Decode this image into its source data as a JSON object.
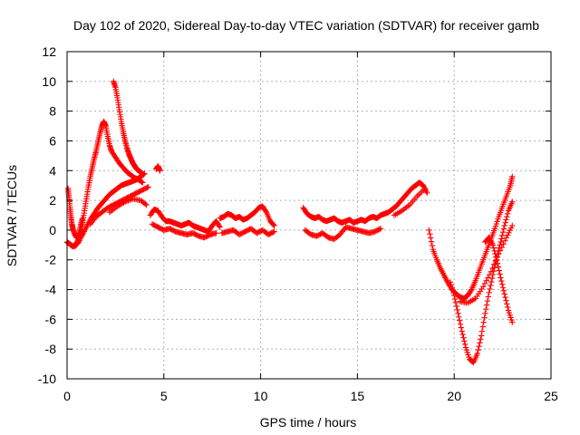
{
  "chart_data": {
    "type": "scatter",
    "title": "Day 102 of 2020, Sidereal Day-to-day VTEC variation (SDTVAR) for receiver gamb",
    "xlabel": "GPS time / hours",
    "ylabel": "SDTVAR / TECUs",
    "xlim": [
      0,
      25
    ],
    "ylim": [
      -10,
      12
    ],
    "xticks": [
      0,
      5,
      10,
      15,
      20,
      25
    ],
    "yticks": [
      -10,
      -8,
      -6,
      -4,
      -2,
      0,
      2,
      4,
      6,
      8,
      10,
      12
    ],
    "grid": true,
    "marker": "plus",
    "color": "#ff0000",
    "series": [
      {
        "x": [
          0.0,
          0.1,
          0.2,
          0.3,
          0.4,
          0.5,
          0.6,
          0.7,
          0.8,
          0.9,
          1.0,
          1.1,
          1.2,
          1.3,
          1.4,
          1.5,
          1.6,
          1.7,
          1.8,
          1.9,
          2.0,
          2.1,
          2.2,
          2.3
        ],
        "y": [
          -0.8,
          -0.9,
          -1.0,
          -1.1,
          -1.0,
          -0.9,
          -0.6,
          -0.2,
          0.5,
          1.3,
          2.1,
          2.9,
          3.6,
          4.2,
          4.8,
          5.3,
          5.9,
          6.5,
          7.0,
          7.3,
          7.0,
          6.3,
          5.7,
          5.3
        ]
      },
      {
        "x": [
          0.05,
          0.1,
          0.15,
          0.2,
          0.25,
          0.3,
          0.4,
          0.5,
          0.6,
          0.7,
          0.8
        ],
        "y": [
          2.8,
          2.2,
          1.5,
          0.9,
          0.4,
          0.1,
          -0.3,
          -0.5,
          -0.3,
          0.3,
          0.8
        ]
      },
      {
        "x": [
          2.4,
          2.5,
          2.6,
          2.7,
          2.8,
          2.9,
          3.0,
          3.1,
          3.2,
          3.3,
          3.4,
          3.5,
          3.6,
          3.7,
          3.8,
          3.9
        ],
        "y": [
          10.0,
          9.6,
          8.9,
          8.1,
          7.3,
          6.6,
          6.0,
          5.5,
          5.1,
          4.8,
          4.5,
          4.3,
          4.1,
          4.0,
          3.9,
          3.8
        ]
      },
      {
        "x": [
          2.3,
          2.5,
          2.7,
          2.9,
          3.1,
          3.3,
          3.5,
          3.7,
          3.9
        ],
        "y": [
          5.3,
          4.9,
          4.5,
          4.2,
          3.9,
          3.7,
          3.5,
          3.4,
          3.2
        ]
      },
      {
        "x": [
          0.4,
          0.6,
          0.8,
          1.0,
          1.2,
          1.4,
          1.6,
          1.8,
          2.0,
          2.2,
          2.4,
          2.6,
          2.8,
          3.0,
          3.2,
          3.4,
          3.6,
          3.8,
          4.0
        ],
        "y": [
          -1.1,
          -0.8,
          -0.3,
          0.2,
          0.7,
          1.1,
          1.5,
          1.8,
          2.1,
          2.4,
          2.6,
          2.8,
          3.0,
          3.1,
          3.2,
          3.3,
          3.4,
          3.6,
          3.8
        ]
      },
      {
        "x": [
          1.2,
          1.5,
          1.8,
          2.1,
          2.4,
          2.7,
          3.0,
          3.3,
          3.6,
          3.9,
          4.2
        ],
        "y": [
          0.4,
          0.9,
          1.2,
          1.5,
          1.7,
          1.9,
          2.1,
          2.3,
          2.5,
          2.7,
          2.9
        ]
      },
      {
        "x": [
          2.2,
          2.6,
          3.0,
          3.4,
          3.8,
          4.1
        ],
        "y": [
          1.2,
          1.6,
          1.9,
          2.1,
          2.0,
          1.7
        ]
      },
      {
        "x": [
          4.6,
          4.7,
          4.8
        ],
        "y": [
          4.1,
          4.3,
          4.0
        ]
      },
      {
        "x": [
          4.3,
          4.5,
          4.7,
          4.9,
          5.1,
          5.3,
          5.5,
          5.7,
          5.9,
          6.1,
          6.3,
          6.5,
          6.7,
          6.9,
          7.1,
          7.3,
          7.5,
          7.7,
          7.9
        ],
        "y": [
          1.0,
          1.4,
          1.3,
          0.9,
          0.6,
          0.6,
          0.5,
          0.4,
          0.3,
          0.4,
          0.5,
          0.3,
          0.2,
          0.1,
          0.0,
          -0.1,
          0.3,
          0.6,
          0.2
        ]
      },
      {
        "x": [
          4.4,
          4.7,
          5.0,
          5.3,
          5.6,
          5.9,
          6.2,
          6.5,
          6.8,
          7.1,
          7.4,
          7.7
        ],
        "y": [
          0.4,
          0.2,
          0.0,
          0.1,
          -0.1,
          -0.2,
          -0.3,
          -0.2,
          -0.4,
          -0.5,
          -0.3,
          -0.2
        ]
      },
      {
        "x": [
          7.9,
          8.1,
          8.3,
          8.5,
          8.7,
          8.9,
          9.1,
          9.3,
          9.5,
          9.7,
          9.9,
          10.1,
          10.3,
          10.5,
          10.7
        ],
        "y": [
          0.8,
          0.9,
          1.1,
          1.0,
          0.8,
          0.9,
          0.7,
          0.8,
          1.0,
          1.2,
          1.5,
          1.6,
          1.2,
          0.6,
          0.3
        ]
      },
      {
        "x": [
          8.0,
          8.3,
          8.6,
          8.9,
          9.2,
          9.5,
          9.8,
          10.1,
          10.4,
          10.7
        ],
        "y": [
          -0.2,
          -0.1,
          0.0,
          -0.3,
          -0.1,
          0.1,
          -0.2,
          0.0,
          -0.3,
          -0.1
        ]
      },
      {
        "x": [
          12.2,
          12.4,
          12.6,
          12.8,
          13.0,
          13.2,
          13.4,
          13.6,
          13.8,
          14.0,
          14.2,
          14.4,
          14.6,
          14.8,
          15.0,
          15.2,
          15.4,
          15.6,
          15.8,
          16.0,
          16.2,
          16.4,
          16.6,
          16.8
        ],
        "y": [
          1.5,
          1.1,
          0.9,
          0.8,
          0.9,
          0.7,
          0.6,
          0.7,
          0.8,
          0.6,
          0.5,
          0.6,
          0.7,
          0.5,
          0.6,
          0.7,
          0.6,
          0.8,
          0.9,
          0.8,
          1.0,
          1.1,
          1.2,
          1.4
        ]
      },
      {
        "x": [
          12.3,
          12.6,
          12.9,
          13.2,
          13.5,
          13.8,
          14.1,
          14.4,
          14.7,
          15.0,
          15.3,
          15.6,
          15.9,
          16.2
        ],
        "y": [
          0.0,
          -0.3,
          -0.4,
          -0.2,
          -0.5,
          -0.6,
          -0.3,
          0.2,
          0.1,
          0.0,
          -0.1,
          -0.2,
          -0.1,
          0.1
        ]
      },
      {
        "x": [
          16.8,
          17.0,
          17.2,
          17.4,
          17.6,
          17.8,
          18.0,
          18.2,
          18.4,
          18.6
        ],
        "y": [
          1.4,
          1.6,
          1.9,
          2.2,
          2.5,
          2.8,
          3.0,
          3.2,
          3.0,
          2.5
        ]
      },
      {
        "x": [
          16.9,
          17.3,
          17.7,
          18.1,
          18.5
        ],
        "y": [
          1.0,
          1.3,
          1.7,
          2.3,
          2.8
        ]
      },
      {
        "x": [
          18.7,
          18.9,
          19.1,
          19.3,
          19.5,
          19.7,
          19.9,
          20.1,
          20.3,
          20.5,
          20.7,
          20.9,
          21.1,
          21.3,
          21.5,
          21.7,
          21.9,
          22.1,
          22.3,
          22.5,
          22.7,
          22.9,
          23.0
        ],
        "y": [
          0.0,
          -1.3,
          -2.0,
          -2.6,
          -3.1,
          -3.6,
          -4.0,
          -4.3,
          -4.5,
          -4.6,
          -4.4,
          -4.0,
          -3.4,
          -2.7,
          -2.0,
          -1.3,
          -0.6,
          0.1,
          0.9,
          1.6,
          2.3,
          3.0,
          3.6
        ]
      },
      {
        "x": [
          19.8,
          20.0,
          20.2,
          20.4,
          20.6,
          20.8,
          21.0,
          21.2,
          21.4,
          21.6,
          21.8,
          22.0,
          22.2,
          22.4,
          22.6,
          22.8,
          23.0
        ],
        "y": [
          -3.5,
          -4.4,
          -5.6,
          -6.8,
          -7.9,
          -8.7,
          -8.9,
          -8.3,
          -7.1,
          -5.6,
          -4.2,
          -3.0,
          -1.8,
          -0.8,
          0.3,
          1.3,
          1.9
        ]
      },
      {
        "x": [
          20.3,
          20.7,
          21.1,
          21.5,
          21.9,
          22.3,
          22.7,
          23.0
        ],
        "y": [
          -4.8,
          -4.9,
          -4.6,
          -3.8,
          -2.8,
          -1.6,
          -0.5,
          0.3
        ]
      },
      {
        "x": [
          21.6,
          21.8,
          22.0,
          22.2,
          22.4,
          22.6,
          22.8,
          23.0
        ],
        "y": [
          -0.8,
          -0.5,
          -1.0,
          -2.0,
          -3.2,
          -4.3,
          -5.4,
          -6.2
        ]
      }
    ]
  }
}
